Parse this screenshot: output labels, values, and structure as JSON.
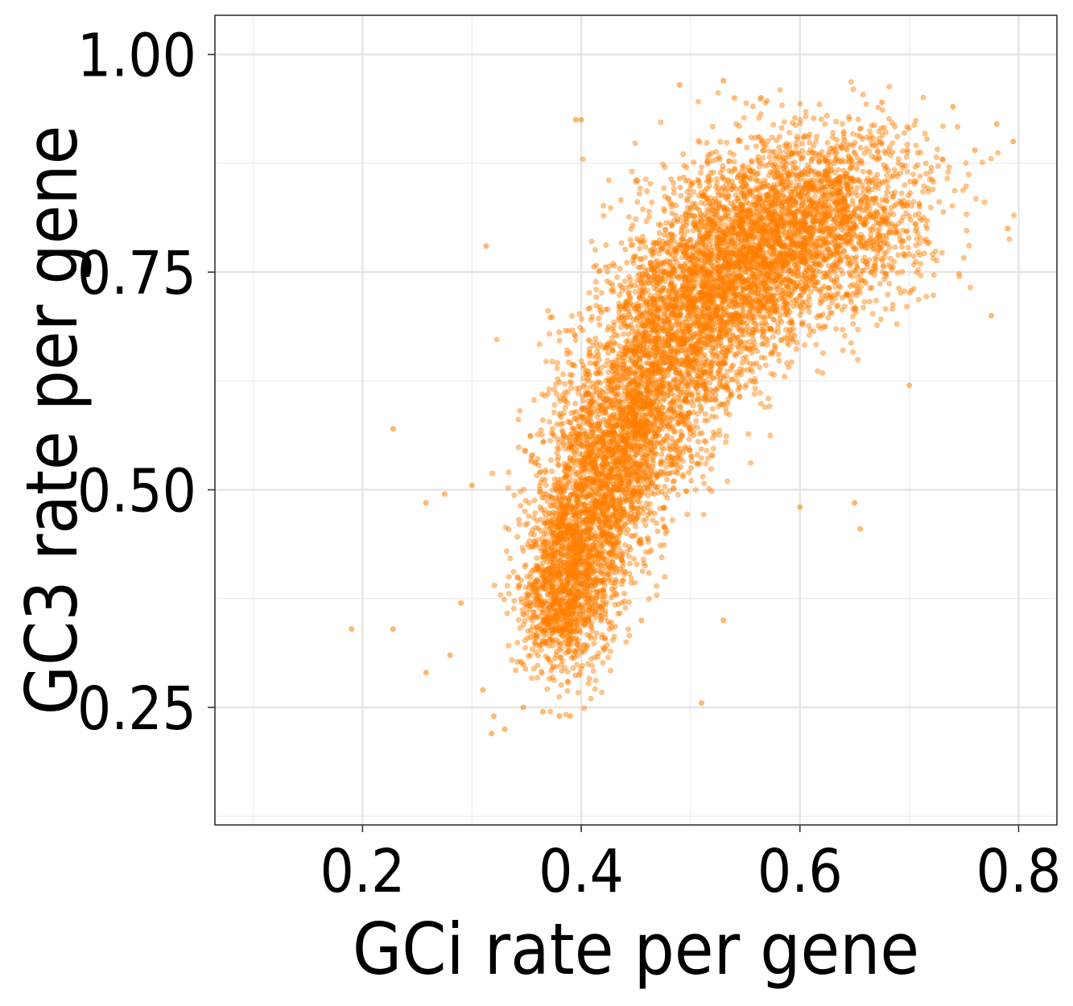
{
  "chart_data": {
    "type": "scatter",
    "xlabel": "GCi rate per gene",
    "ylabel": "GC3 rate per gene",
    "xlim": [
      0.065,
      0.835
    ],
    "ylim": [
      0.115,
      1.045
    ],
    "x_ticks": [
      0.2,
      0.4,
      0.6,
      0.8
    ],
    "x_tick_labels": [
      "0.2",
      "0.4",
      "0.6",
      "0.8"
    ],
    "y_ticks": [
      0.25,
      0.5,
      0.75,
      1.0
    ],
    "y_tick_labels": [
      "0.25",
      "0.50",
      "0.75",
      "1.00"
    ],
    "x_minor_ticks": [
      0.1,
      0.3,
      0.5,
      0.7
    ],
    "y_minor_ticks": [
      0.125,
      0.375,
      0.625,
      0.875
    ],
    "grid": true,
    "legend": "none",
    "point_color": "#ff7f00",
    "point_opacity": 0.45,
    "dense_cloud": [
      {
        "x": 0.375,
        "y": 0.33
      },
      {
        "x": 0.39,
        "y": 0.4
      },
      {
        "x": 0.41,
        "y": 0.48
      },
      {
        "x": 0.44,
        "y": 0.56
      },
      {
        "x": 0.47,
        "y": 0.64
      },
      {
        "x": 0.51,
        "y": 0.72
      },
      {
        "x": 0.55,
        "y": 0.77
      },
      {
        "x": 0.6,
        "y": 0.81
      },
      {
        "x": 0.65,
        "y": 0.83
      }
    ],
    "outlier_points": [
      {
        "x": 0.19,
        "y": 0.34
      },
      {
        "x": 0.228,
        "y": 0.34
      },
      {
        "x": 0.228,
        "y": 0.57
      },
      {
        "x": 0.258,
        "y": 0.29
      },
      {
        "x": 0.258,
        "y": 0.485
      },
      {
        "x": 0.275,
        "y": 0.495
      },
      {
        "x": 0.28,
        "y": 0.31
      },
      {
        "x": 0.29,
        "y": 0.37
      },
      {
        "x": 0.3,
        "y": 0.505
      },
      {
        "x": 0.318,
        "y": 0.22
      },
      {
        "x": 0.31,
        "y": 0.27
      },
      {
        "x": 0.313,
        "y": 0.78
      },
      {
        "x": 0.32,
        "y": 0.24
      },
      {
        "x": 0.33,
        "y": 0.225
      },
      {
        "x": 0.347,
        "y": 0.25
      },
      {
        "x": 0.365,
        "y": 0.245
      },
      {
        "x": 0.38,
        "y": 0.24
      },
      {
        "x": 0.39,
        "y": 0.24
      },
      {
        "x": 0.395,
        "y": 0.925
      },
      {
        "x": 0.4,
        "y": 0.925
      },
      {
        "x": 0.455,
        "y": 0.35
      },
      {
        "x": 0.49,
        "y": 0.965
      },
      {
        "x": 0.51,
        "y": 0.255
      },
      {
        "x": 0.53,
        "y": 0.35
      },
      {
        "x": 0.53,
        "y": 0.97
      },
      {
        "x": 0.54,
        "y": 0.95
      },
      {
        "x": 0.6,
        "y": 0.48
      },
      {
        "x": 0.65,
        "y": 0.485
      },
      {
        "x": 0.655,
        "y": 0.455
      },
      {
        "x": 0.675,
        "y": 0.945
      },
      {
        "x": 0.7,
        "y": 0.62
      },
      {
        "x": 0.74,
        "y": 0.94
      },
      {
        "x": 0.76,
        "y": 0.89
      },
      {
        "x": 0.775,
        "y": 0.7
      },
      {
        "x": 0.78,
        "y": 0.92
      },
      {
        "x": 0.79,
        "y": 0.8
      },
      {
        "x": 0.795,
        "y": 0.9
      }
    ]
  }
}
